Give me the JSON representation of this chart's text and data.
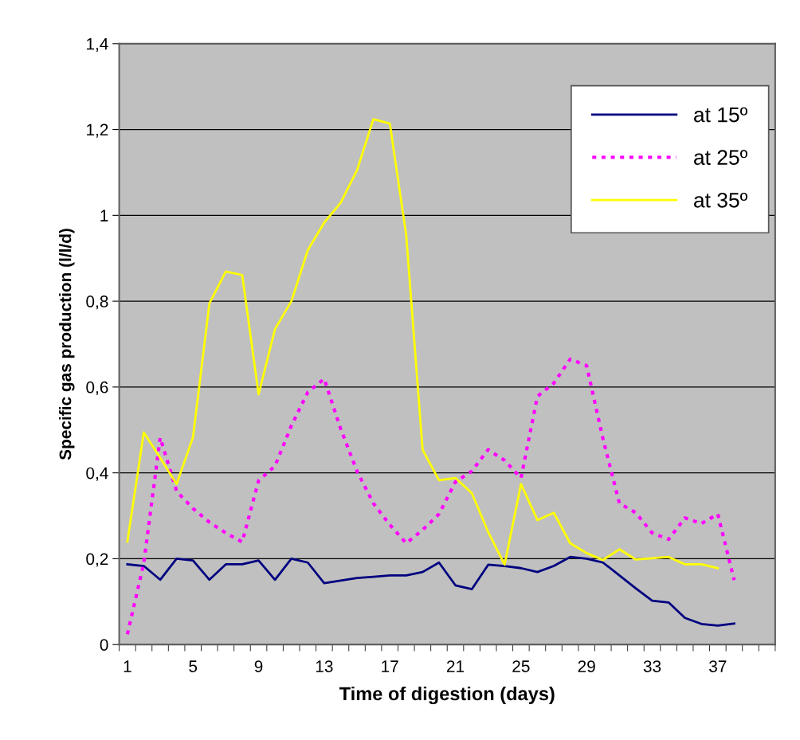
{
  "chart_data": {
    "type": "line",
    "xlabel": "Time of digestion (days)",
    "ylabel": "Specific gas production (l/l/d)",
    "categories": [
      "1",
      null,
      null,
      null,
      "5",
      null,
      null,
      null,
      "9",
      null,
      null,
      null,
      "13",
      null,
      null,
      null,
      "17",
      null,
      null,
      null,
      "21",
      null,
      null,
      null,
      "25",
      null,
      null,
      null,
      "29",
      null,
      null,
      null,
      "33",
      null,
      null,
      null,
      "37",
      null,
      null,
      null
    ],
    "series": [
      {
        "name": "at 15º",
        "color": "#000080",
        "line_style": "solid",
        "values": [
          0.187,
          0.183,
          0.151,
          0.2,
          0.196,
          0.151,
          0.187,
          0.187,
          0.196,
          0.151,
          0.2,
          0.191,
          0.143,
          0.149,
          0.155,
          0.158,
          0.161,
          0.161,
          0.169,
          0.191,
          0.138,
          0.129,
          0.186,
          0.183,
          0.178,
          0.169,
          0.183,
          0.204,
          0.2,
          0.191,
          0.161,
          0.131,
          0.102,
          0.098,
          0.062,
          0.048,
          0.044,
          0.049,
          null,
          null
        ]
      },
      {
        "name": "at 25º",
        "color": "#ff00ff",
        "line_style": "dotted",
        "values": [
          0.024,
          0.19,
          0.482,
          0.357,
          0.317,
          0.285,
          0.26,
          0.239,
          0.382,
          0.416,
          0.51,
          0.588,
          0.619,
          0.503,
          0.404,
          0.329,
          0.279,
          0.236,
          0.267,
          0.304,
          0.379,
          0.404,
          0.454,
          0.429,
          0.388,
          0.578,
          0.609,
          0.665,
          0.65,
          0.479,
          0.329,
          0.307,
          0.26,
          0.245,
          0.295,
          0.282,
          0.304,
          0.15,
          null,
          null
        ]
      },
      {
        "name": "at 35º",
        "color": "#ffff00",
        "line_style": "solid",
        "values": [
          0.24,
          0.494,
          0.435,
          0.374,
          0.483,
          0.795,
          0.869,
          0.861,
          0.583,
          0.735,
          0.8,
          0.919,
          0.983,
          1.029,
          1.105,
          1.224,
          1.214,
          0.954,
          0.454,
          0.383,
          0.388,
          0.353,
          0.262,
          0.186,
          0.374,
          0.29,
          0.307,
          0.236,
          0.213,
          0.197,
          0.222,
          0.198,
          0.201,
          0.204,
          0.187,
          0.187,
          0.178,
          null,
          null,
          null
        ]
      }
    ],
    "ylim": [
      0,
      1.4
    ],
    "yticks": [
      0,
      {
        "value": 0.2,
        "label": "0,2"
      },
      {
        "value": 0.4,
        "label": "0,4"
      },
      {
        "value": 0.6,
        "label": "0,6"
      },
      {
        "value": 0.8,
        "label": "0,8"
      },
      1,
      {
        "value": 1.2,
        "label": "1,2"
      },
      {
        "value": 1.4,
        "label": "1,4"
      }
    ],
    "grid": "y",
    "legend": "top right",
    "marker": "none"
  }
}
